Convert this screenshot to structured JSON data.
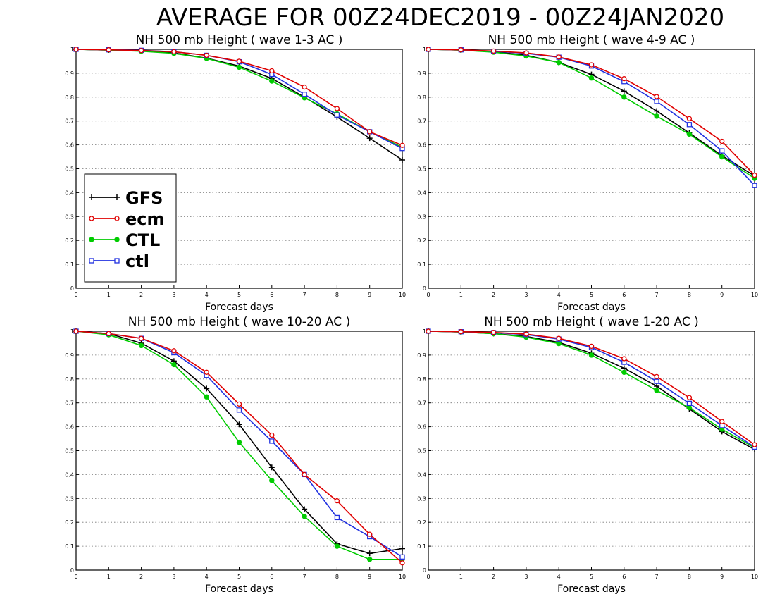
{
  "figure": {
    "title": "AVERAGE FOR 00Z24DEC2019 - 00Z24JAN2020"
  },
  "legend": {
    "entries": [
      {
        "name": "GFS",
        "color": "#000000",
        "marker": "plus"
      },
      {
        "name": "ecm",
        "color": "#e00000",
        "marker": "circle"
      },
      {
        "name": "CTL",
        "color": "#00cc00",
        "marker": "filled-circle"
      },
      {
        "name": "ctl",
        "color": "#2030e0",
        "marker": "square"
      }
    ],
    "placement": "lower-left of first panel"
  },
  "chart_data": [
    {
      "type": "line",
      "title": "NH 500 mb Height ( wave 1-3 AC )",
      "xlabel": "Forecast days",
      "ylabel": "",
      "x": [
        0,
        1,
        2,
        3,
        4,
        5,
        6,
        7,
        8,
        9,
        10
      ],
      "xticks": [
        "0",
        "1",
        "2",
        "3",
        "4",
        "5",
        "6",
        "7",
        "8",
        "9",
        "10"
      ],
      "yticks": [
        "0",
        "0.1",
        "0.2",
        "0.3",
        "0.4",
        "0.5",
        "0.6",
        "0.7",
        "0.8",
        "0.9",
        "1"
      ],
      "xlim": [
        0,
        10
      ],
      "ylim": [
        0,
        1
      ],
      "grid": true,
      "series": [
        {
          "name": "GFS",
          "values": [
            1.0,
            0.997,
            0.993,
            0.985,
            0.963,
            0.93,
            0.878,
            0.8,
            0.717,
            0.628,
            0.537
          ]
        },
        {
          "name": "ecm",
          "values": [
            1.0,
            0.998,
            0.995,
            0.99,
            0.975,
            0.95,
            0.91,
            0.842,
            0.752,
            0.655,
            0.598
          ]
        },
        {
          "name": "CTL",
          "values": [
            1.0,
            0.997,
            0.992,
            0.983,
            0.962,
            0.925,
            0.867,
            0.797,
            0.73,
            0.655,
            0.59
          ]
        },
        {
          "name": "ctl",
          "values": [
            1.0,
            0.998,
            0.996,
            0.99,
            0.975,
            0.948,
            0.895,
            0.812,
            0.725,
            0.655,
            0.585
          ]
        }
      ]
    },
    {
      "type": "line",
      "title": "NH 500 mb Height ( wave 4-9 AC )",
      "xlabel": "Forecast days",
      "ylabel": "",
      "x": [
        0,
        1,
        2,
        3,
        4,
        5,
        6,
        7,
        8,
        9,
        10
      ],
      "xticks": [
        "0",
        "1",
        "2",
        "3",
        "4",
        "5",
        "6",
        "7",
        "8",
        "9",
        "10"
      ],
      "yticks": [
        "0",
        "0.1",
        "0.2",
        "0.3",
        "0.4",
        "0.5",
        "0.6",
        "0.7",
        "0.8",
        "0.9",
        "1"
      ],
      "xlim": [
        0,
        10
      ],
      "ylim": [
        0,
        1
      ],
      "grid": true,
      "series": [
        {
          "name": "GFS",
          "values": [
            1.0,
            0.997,
            0.99,
            0.975,
            0.945,
            0.895,
            0.825,
            0.742,
            0.65,
            0.555,
            0.47
          ]
        },
        {
          "name": "ecm",
          "values": [
            1.0,
            0.998,
            0.993,
            0.985,
            0.968,
            0.935,
            0.877,
            0.802,
            0.71,
            0.615,
            0.473
          ]
        },
        {
          "name": "CTL",
          "values": [
            1.0,
            0.997,
            0.988,
            0.972,
            0.945,
            0.88,
            0.8,
            0.72,
            0.645,
            0.55,
            0.46
          ]
        },
        {
          "name": "ctl",
          "values": [
            1.0,
            0.998,
            0.992,
            0.983,
            0.967,
            0.93,
            0.865,
            0.782,
            0.685,
            0.575,
            0.43
          ]
        }
      ]
    },
    {
      "type": "line",
      "title": "NH 500 mb Height ( wave 10-20 AC )",
      "xlabel": "Forecast days",
      "ylabel": "",
      "x": [
        0,
        1,
        2,
        3,
        4,
        5,
        6,
        7,
        8,
        9,
        10
      ],
      "xticks": [
        "0",
        "1",
        "2",
        "3",
        "4",
        "5",
        "6",
        "7",
        "8",
        "9",
        "10"
      ],
      "yticks": [
        "0",
        "0.1",
        "0.2",
        "0.3",
        "0.4",
        "0.5",
        "0.6",
        "0.7",
        "0.8",
        "0.9",
        "1"
      ],
      "xlim": [
        0,
        10
      ],
      "ylim": [
        0,
        1
      ],
      "grid": true,
      "series": [
        {
          "name": "GFS",
          "values": [
            1.0,
            0.99,
            0.95,
            0.875,
            0.76,
            0.61,
            0.43,
            0.255,
            0.11,
            0.07,
            0.09
          ]
        },
        {
          "name": "ecm",
          "values": [
            1.0,
            0.99,
            0.97,
            0.918,
            0.828,
            0.695,
            0.565,
            0.4,
            0.29,
            0.15,
            0.03
          ]
        },
        {
          "name": "CTL",
          "values": [
            1.0,
            0.985,
            0.94,
            0.86,
            0.725,
            0.535,
            0.375,
            0.225,
            0.1,
            0.045,
            0.045
          ]
        },
        {
          "name": "ctl",
          "values": [
            1.0,
            0.99,
            0.97,
            0.91,
            0.815,
            0.67,
            0.54,
            0.4,
            0.22,
            0.14,
            0.055
          ]
        }
      ]
    },
    {
      "type": "line",
      "title": "NH 500 mb Height ( wave 1-20 AC )",
      "xlabel": "Forecast days",
      "ylabel": "",
      "x": [
        0,
        1,
        2,
        3,
        4,
        5,
        6,
        7,
        8,
        9,
        10
      ],
      "xticks": [
        "0",
        "1",
        "2",
        "3",
        "4",
        "5",
        "6",
        "7",
        "8",
        "9",
        "10"
      ],
      "yticks": [
        "0",
        "0.1",
        "0.2",
        "0.3",
        "0.4",
        "0.5",
        "0.6",
        "0.7",
        "0.8",
        "0.9",
        "1"
      ],
      "xlim": [
        0,
        10
      ],
      "ylim": [
        0,
        1
      ],
      "grid": true,
      "series": [
        {
          "name": "GFS",
          "values": [
            1.0,
            0.997,
            0.99,
            0.978,
            0.953,
            0.908,
            0.845,
            0.77,
            0.675,
            0.58,
            0.505
          ]
        },
        {
          "name": "ecm",
          "values": [
            1.0,
            0.998,
            0.995,
            0.988,
            0.97,
            0.937,
            0.885,
            0.81,
            0.722,
            0.622,
            0.525
          ]
        },
        {
          "name": "CTL",
          "values": [
            1.0,
            0.997,
            0.99,
            0.975,
            0.948,
            0.9,
            0.828,
            0.752,
            0.68,
            0.59,
            0.512
          ]
        },
        {
          "name": "ctl",
          "values": [
            1.0,
            0.998,
            0.994,
            0.986,
            0.967,
            0.932,
            0.87,
            0.79,
            0.698,
            0.605,
            0.515
          ]
        }
      ]
    }
  ]
}
